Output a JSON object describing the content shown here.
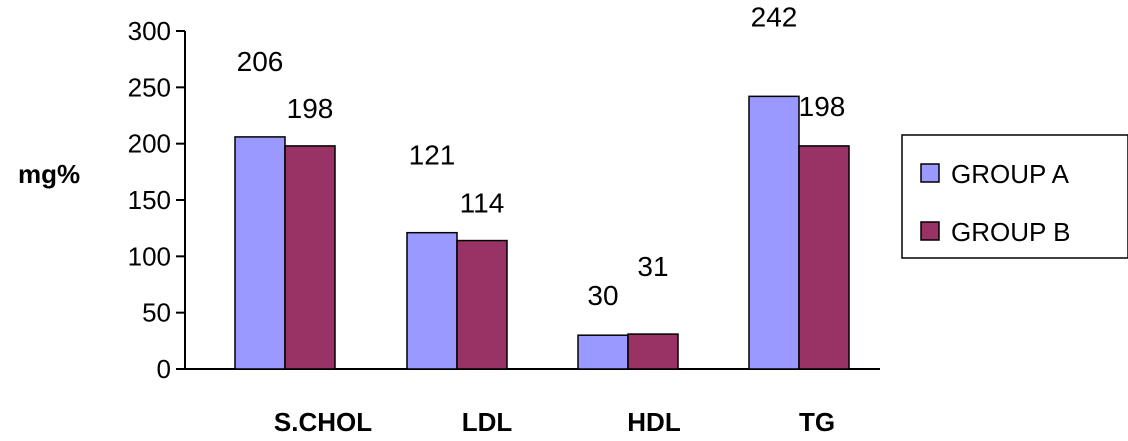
{
  "chart_data": {
    "type": "bar",
    "categories": [
      "S.CHOL",
      "LDL",
      "HDL",
      "TG"
    ],
    "series": [
      {
        "name": "GROUP A",
        "values": [
          206,
          121,
          30,
          242
        ],
        "labels": [
          "206",
          "121",
          "30",
          "242"
        ],
        "color": "#9999ff"
      },
      {
        "name": "GROUP B",
        "values": [
          198,
          114,
          31,
          198
        ],
        "labels": [
          "198",
          "114",
          "31",
          "198"
        ],
        "color": "#993366"
      }
    ],
    "ylabel": "mg%",
    "ylim": [
      0,
      300
    ],
    "yticks": [
      "0",
      "50",
      "100",
      "150",
      "200",
      "250",
      "300"
    ],
    "legend_position": "right",
    "grid": false
  }
}
